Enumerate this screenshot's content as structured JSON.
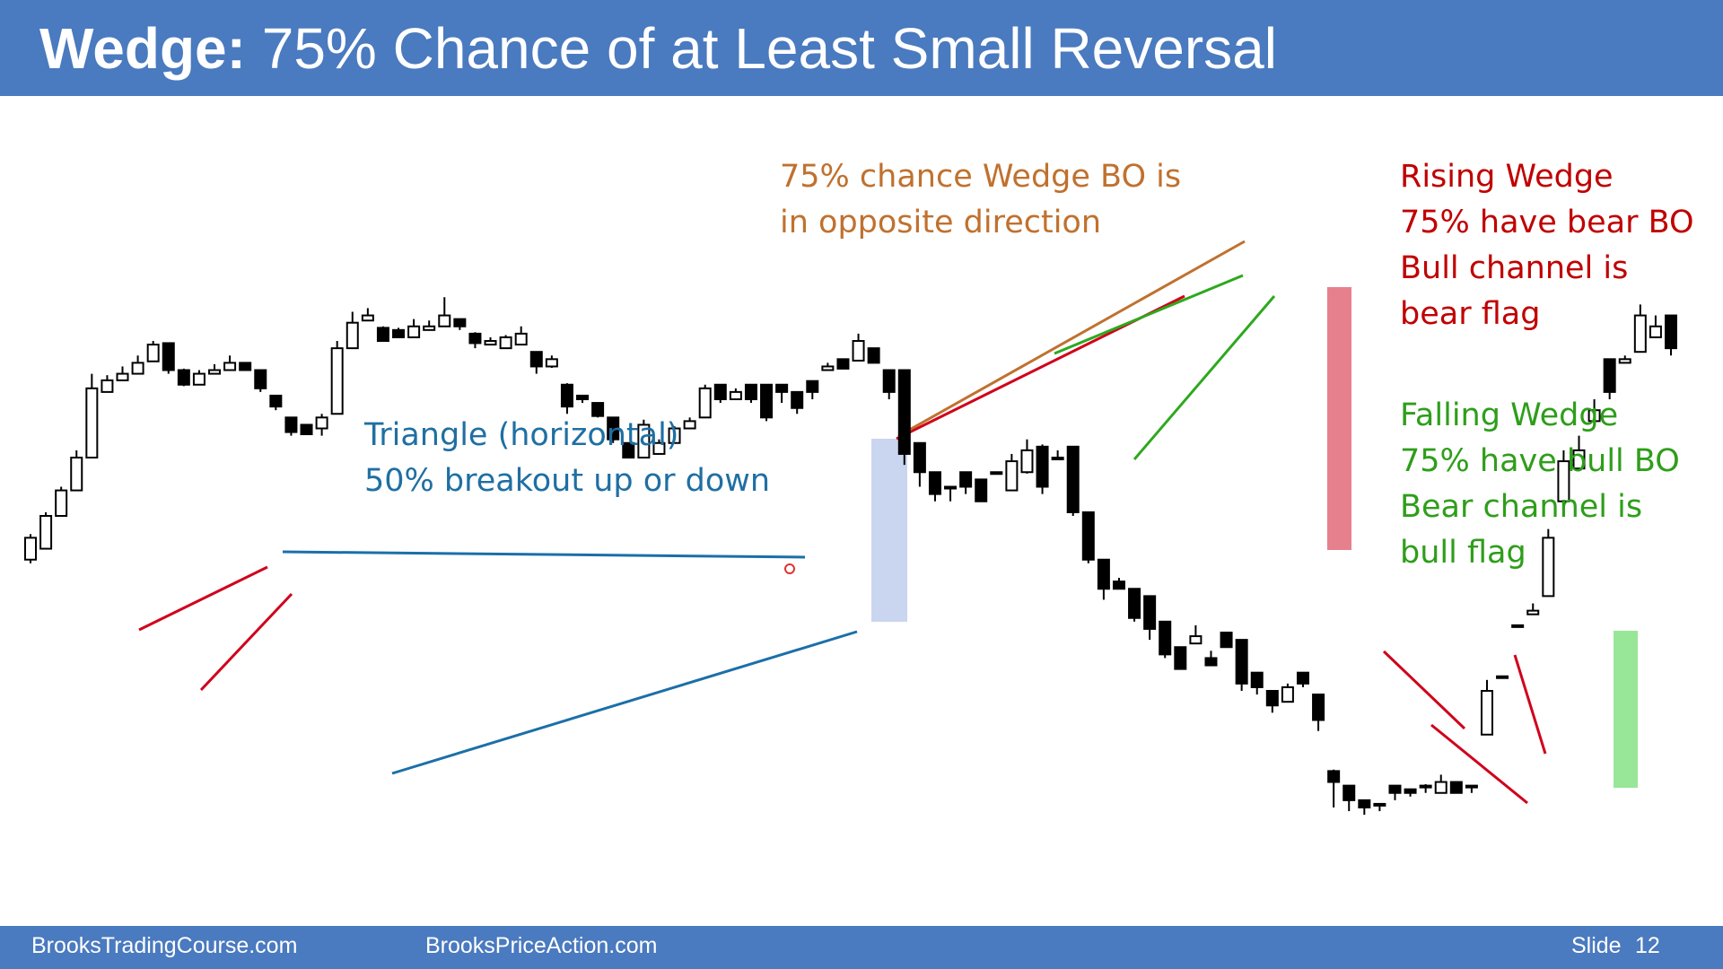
{
  "slide": {
    "title_bold": "Wedge:",
    "title_rest": " 75% Chance of at Least Small Reversal",
    "footer_left": "BrooksTradingCourse.com",
    "footer_center": "BrooksPriceAction.com",
    "footer_slide_label": "Slide",
    "footer_slide_number": "12"
  },
  "annotations": {
    "triangle": {
      "line1": "Triangle (horizontal)",
      "line2": "50% breakout up or down",
      "color": "#1f6fa3"
    },
    "wedge_bo": {
      "line1": "75% chance Wedge BO is",
      "line2": "in opposite direction",
      "color": "#c0712e"
    },
    "rising_wedge": {
      "line1": "Rising Wedge",
      "line2": "75% have bear BO",
      "line3": "Bull channel is",
      "line4": "bear flag",
      "color": "#c00000"
    },
    "falling_wedge": {
      "line1": "Falling Wedge",
      "line2": "75% have bull BO",
      "line3": "Bear channel is",
      "line4": "bull flag",
      "color": "#2e9e1a"
    }
  },
  "colors": {
    "header": "#4a7abf",
    "red_line": "#d0021b",
    "green_line": "#2ea81e",
    "blue_line": "#1b6fa8",
    "orange_line": "#c0712e",
    "blue_highlight": "#b3c3e8",
    "red_highlight": "#e06070",
    "green_highlight": "#7ee07e"
  },
  "chart_data": {
    "type": "candlestick",
    "ohlc": [
      [
        640,
        635,
        670,
        675
      ],
      [
        655,
        660,
        700,
        705
      ],
      [
        700,
        702,
        735,
        740
      ],
      [
        735,
        738,
        780,
        790
      ],
      [
        780,
        785,
        875,
        895
      ],
      [
        870,
        876,
        886,
        893
      ],
      [
        886,
        885,
        895,
        905
      ],
      [
        895,
        897,
        910,
        920
      ],
      [
        912,
        915,
        935,
        940
      ],
      [
        937,
        930,
        900,
        895
      ],
      [
        900,
        902,
        880,
        878
      ],
      [
        880,
        883,
        895,
        900
      ],
      [
        895,
        895,
        900,
        908
      ],
      [
        900,
        902,
        910,
        920
      ],
      [
        910,
        908,
        900,
        905
      ],
      [
        900,
        897,
        875,
        870
      ],
      [
        865,
        860,
        850,
        845
      ],
      [
        835,
        835,
        815,
        810
      ],
      [
        825,
        825,
        812,
        820
      ],
      [
        820,
        810,
        835,
        840
      ],
      [
        840,
        840,
        930,
        940
      ],
      [
        930,
        935,
        965,
        980
      ],
      [
        968,
        970,
        975,
        985
      ],
      [
        958,
        960,
        940,
        940
      ],
      [
        955,
        955,
        945,
        958
      ],
      [
        945,
        945,
        960,
        970
      ],
      [
        955,
        955,
        960,
        968
      ],
      [
        960,
        962,
        975,
        1000
      ],
      [
        970,
        970,
        960,
        955
      ],
      [
        950,
        952,
        937,
        930
      ],
      [
        935,
        936,
        940,
        945
      ],
      [
        930,
        932,
        945,
        948
      ],
      [
        935,
        937,
        950,
        960
      ],
      [
        925,
        925,
        905,
        895
      ],
      [
        905,
        903,
        915,
        920
      ],
      [
        880,
        882,
        850,
        840
      ],
      [
        865,
        862,
        860,
        855
      ],
      [
        855,
        855,
        837,
        835
      ],
      [
        835,
        835,
        805,
        800
      ],
      [
        800,
        800,
        780,
        800
      ],
      [
        780,
        780,
        825,
        832
      ],
      [
        785,
        785,
        800,
        805
      ],
      [
        800,
        800,
        820,
        823
      ],
      [
        820,
        820,
        830,
        835
      ],
      [
        835,
        835,
        875,
        880
      ],
      [
        880,
        880,
        860,
        855
      ],
      [
        860,
        860,
        870,
        875
      ],
      [
        880,
        880,
        860,
        855
      ],
      [
        880,
        880,
        835,
        830
      ],
      [
        880,
        880,
        870,
        855
      ],
      [
        870,
        870,
        848,
        840
      ],
      [
        885,
        885,
        870,
        860
      ],
      [
        900,
        900,
        905,
        910
      ],
      [
        915,
        915,
        902,
        902
      ],
      [
        913,
        913,
        940,
        950
      ],
      [
        930,
        928,
        910,
        910
      ],
      [
        900,
        900,
        870,
        860
      ],
      [
        900,
        880,
        785,
        770
      ],
      [
        800,
        795,
        760,
        740
      ],
      [
        760,
        758,
        730,
        720
      ],
      [
        740,
        740,
        740,
        720
      ],
      [
        760,
        745,
        740,
        730
      ],
      [
        750,
        745,
        720,
        735
      ],
      [
        760,
        757,
        760,
        760
      ],
      [
        735,
        735,
        775,
        785
      ],
      [
        760,
        758,
        790,
        805
      ],
      [
        795,
        798,
        740,
        730
      ],
      [
        780,
        778,
        780,
        790
      ],
      [
        795,
        795,
        705,
        700
      ],
      [
        705,
        705,
        640,
        635
      ],
      [
        640,
        640,
        600,
        585
      ],
      [
        610,
        612,
        600,
        615
      ],
      [
        600,
        600,
        560,
        555
      ],
      [
        590,
        588,
        545,
        530
      ],
      [
        555,
        555,
        510,
        505
      ],
      [
        520,
        520,
        490,
        490
      ],
      [
        525,
        525,
        535,
        550
      ],
      [
        505,
        505,
        495,
        515
      ],
      [
        540,
        540,
        520,
        520
      ],
      [
        530,
        530,
        470,
        460
      ],
      [
        485,
        485,
        465,
        455
      ],
      [
        460,
        460,
        440,
        430
      ],
      [
        445,
        445,
        465,
        470
      ],
      [
        485,
        483,
        470,
        465
      ],
      [
        455,
        455,
        420,
        405
      ],
      [
        350,
        352,
        335,
        300
      ],
      [
        330,
        330,
        310,
        295
      ],
      [
        310,
        310,
        300,
        290
      ],
      [
        305,
        304,
        305,
        295
      ],
      [
        330,
        330,
        320,
        310
      ],
      [
        325,
        326,
        320,
        315
      ],
      [
        330,
        332,
        330,
        320
      ],
      [
        320,
        320,
        335,
        345
      ],
      [
        335,
        335,
        320,
        320
      ],
      [
        330,
        330,
        330,
        320
      ],
      [
        400,
        400,
        460,
        475
      ],
      [
        480,
        480,
        480,
        480
      ],
      [
        550,
        550,
        550,
        550
      ],
      [
        565,
        565,
        570,
        580
      ],
      [
        590,
        590,
        670,
        682
      ],
      [
        720,
        715,
        775,
        790
      ],
      [
        765,
        765,
        790,
        810
      ],
      [
        830,
        830,
        845,
        860
      ],
      [
        915,
        915,
        870,
        860
      ],
      [
        910,
        910,
        915,
        920
      ],
      [
        925,
        925,
        975,
        990
      ],
      [
        945,
        945,
        960,
        975
      ],
      [
        975,
        970,
        930,
        920
      ]
    ]
  }
}
